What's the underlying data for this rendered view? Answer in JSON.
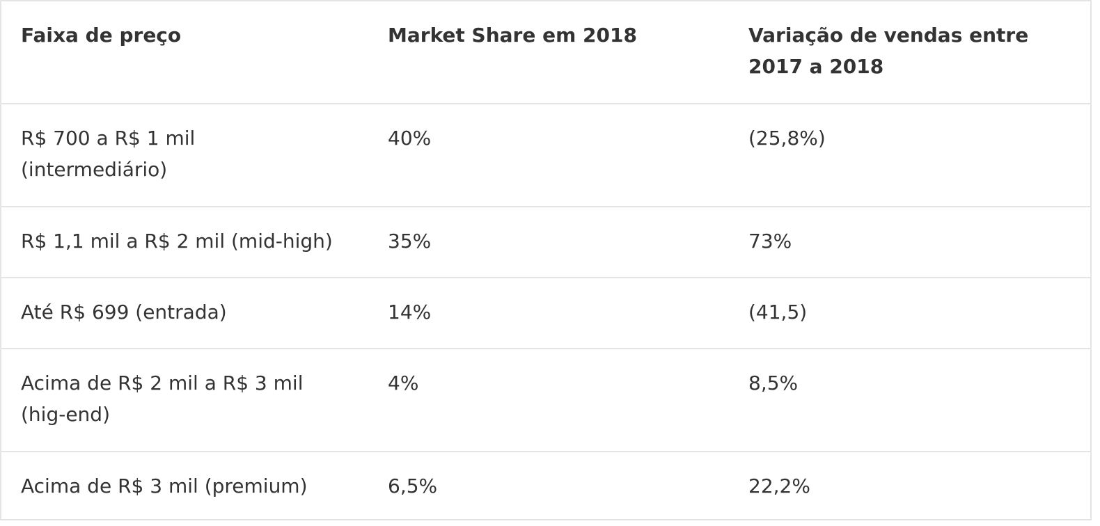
{
  "table": {
    "headers": [
      "Faixa de preço",
      "Market Share em 2018",
      "Variação de vendas entre 2017 a 2018"
    ],
    "rows": [
      [
        "R$ 700 a R$ 1 mil (intermediário)",
        "40%",
        "(25,8%)"
      ],
      [
        "R$ 1,1 mil a R$ 2 mil (mid-high)",
        "35%",
        "73%"
      ],
      [
        "Até R$ 699 (entrada)",
        "14%",
        "(41,5)"
      ],
      [
        "Acima de R$ 2 mil a R$ 3 mil (hig-end)",
        "4%",
        "8,5%"
      ],
      [
        "Acima de R$ 3 mil (premium)",
        "6,5%",
        "22,2%"
      ]
    ]
  }
}
